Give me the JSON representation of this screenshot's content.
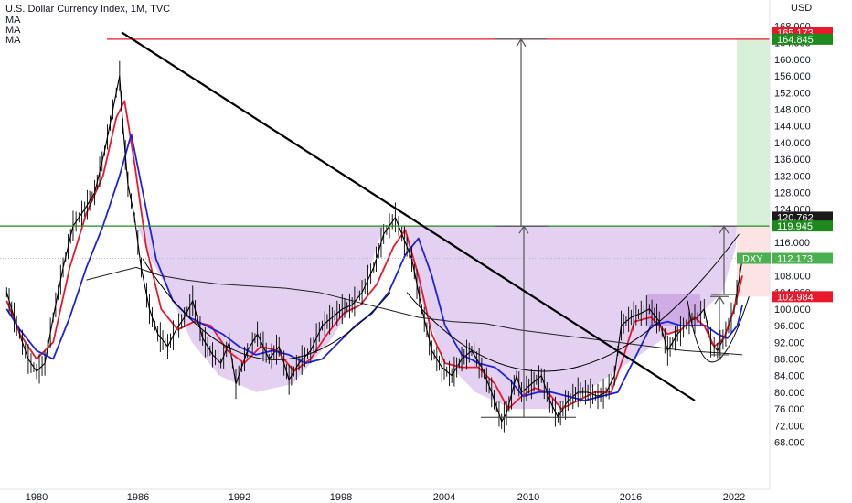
{
  "header": {
    "title": "U.S. Dollar Currency Index, 1M, TVC",
    "indicators": [
      "MA",
      "MA",
      "MA"
    ]
  },
  "colors": {
    "bar": "#000000",
    "ma_fast": "#e8192c",
    "ma_mid": "#1e22e0",
    "ma_slow": "#222222",
    "resistance_red": "#e8192c",
    "neckline_green": "#1e8a1e",
    "cup_fill": "#d6b8ea",
    "target_green": "#d8f0d8",
    "target_red": "#fde4e4"
  },
  "chart_data": {
    "type": "line",
    "title": "U.S. Dollar Currency Index, 1M, TVC",
    "currency": "USD",
    "y_ticks": [
      68,
      72,
      76,
      80,
      84,
      88,
      92,
      96,
      100,
      104,
      108,
      112,
      116,
      120,
      124,
      128,
      132,
      136,
      140,
      144,
      148,
      152,
      156,
      160,
      164,
      168
    ],
    "x_ticks": [
      "1980",
      "1986",
      "1992",
      "1998",
      "2004",
      "2010",
      "2016",
      "2022"
    ],
    "x_tick_years": [
      1980,
      1986,
      1992,
      1998,
      2004,
      2010,
      2016,
      2022
    ],
    "xlim": [
      1978.2,
      2023.6
    ],
    "ylim": [
      66,
      170
    ],
    "series": [
      {
        "key": "price",
        "x": [
          1978.2,
          1978.8,
          1979.5,
          1980.0,
          1980.5,
          1981.0,
          1981.6,
          1982.2,
          1982.9,
          1983.5,
          1984.1,
          1984.6,
          1985.0,
          1985.2,
          1985.5,
          1985.9,
          1986.3,
          1986.8,
          1987.3,
          1987.9,
          1988.4,
          1988.9,
          1989.4,
          1990.0,
          1990.6,
          1991.1,
          1991.6,
          1992.0,
          1992.7,
          1993.3,
          1994.0,
          1994.6,
          1995.2,
          1995.8,
          1996.5,
          1997.2,
          1997.8,
          1998.4,
          1999.0,
          1999.6,
          2000.3,
          2000.9,
          2001.6,
          2002.0,
          2002.6,
          2003.2,
          2003.8,
          2004.4,
          2005.0,
          2005.6,
          2006.2,
          2006.8,
          2007.4,
          2008.0,
          2008.3,
          2008.9,
          2009.2,
          2009.8,
          2010.4,
          2010.9,
          2011.4,
          2012.0,
          2012.6,
          2013.2,
          2013.8,
          2014.3,
          2014.8,
          2015.2,
          2015.8,
          2016.4,
          2016.9,
          2017.5,
          2018.0,
          2018.6,
          2019.3,
          2019.8,
          2020.2,
          2020.6,
          2021.0,
          2021.5,
          2022.0,
          2022.5
        ],
        "y": [
          104,
          96,
          88,
          85,
          87,
          98,
          110,
          120,
          124,
          128,
          138,
          148,
          156,
          144,
          130,
          122,
          110,
          100,
          94,
          91,
          95,
          98,
          102,
          93,
          89,
          87,
          92,
          82,
          90,
          94,
          88,
          91,
          83,
          87,
          90,
          96,
          98,
          100,
          101,
          104,
          110,
          118,
          122,
          118,
          112,
          100,
          90,
          86,
          84,
          88,
          90,
          86,
          80,
          73,
          75,
          84,
          80,
          82,
          84,
          78,
          74,
          78,
          80,
          80,
          79,
          80,
          84,
          96,
          98,
          99,
          100,
          97,
          90,
          94,
          97,
          98,
          100,
          92,
          90,
          94,
          100,
          112
        ]
      },
      {
        "key": "ma_fast",
        "x": [
          1978.2,
          1979.0,
          1980.0,
          1981.0,
          1982.0,
          1983.0,
          1984.0,
          1984.8,
          1985.3,
          1985.9,
          1986.6,
          1987.5,
          1988.5,
          1989.5,
          1990.5,
          1991.5,
          1992.5,
          1993.5,
          1994.5,
          1995.5,
          1996.5,
          1997.5,
          1998.5,
          1999.5,
          2000.5,
          2001.5,
          2002.2,
          2003.0,
          2003.8,
          2004.6,
          2005.6,
          2006.6,
          2007.6,
          2008.4,
          2009.2,
          2010.0,
          2010.8,
          2011.6,
          2012.6,
          2013.6,
          2014.6,
          2015.3,
          2016.0,
          2017.0,
          2018.0,
          2018.8,
          2019.6,
          2020.2,
          2020.8,
          2021.4,
          2022.0,
          2022.5
        ],
        "y": [
          102,
          94,
          88,
          92,
          110,
          123,
          132,
          146,
          150,
          135,
          115,
          100,
          95,
          97,
          96,
          90,
          87,
          91,
          90,
          85,
          88,
          94,
          99,
          101,
          106,
          115,
          119,
          108,
          94,
          87,
          86,
          86,
          82,
          76,
          79,
          81,
          80,
          76,
          78,
          80,
          80,
          88,
          97,
          98,
          94,
          95,
          98,
          96,
          91,
          93,
          100,
          108
        ]
      },
      {
        "key": "ma_mid",
        "x": [
          1978.2,
          1979.0,
          1980.0,
          1981.0,
          1982.0,
          1983.0,
          1984.0,
          1985.0,
          1985.7,
          1986.4,
          1987.2,
          1988.2,
          1989.2,
          1990.2,
          1991.2,
          1992.2,
          1993.2,
          1994.2,
          1995.2,
          1996.2,
          1997.2,
          1998.2,
          1999.2,
          2000.2,
          2001.2,
          2002.2,
          2003.0,
          2003.8,
          2004.6,
          2005.6,
          2006.6,
          2007.6,
          2008.5,
          2009.3,
          2010.2,
          2011.0,
          2012.0,
          2013.0,
          2014.0,
          2015.0,
          2016.0,
          2017.0,
          2018.0,
          2018.8,
          2019.6,
          2020.3,
          2021.0,
          2021.6,
          2022.2,
          2022.5
        ],
        "y": [
          100,
          95,
          90,
          88,
          98,
          110,
          120,
          132,
          142,
          128,
          112,
          102,
          98,
          96,
          94,
          91,
          89,
          90,
          89,
          87,
          88,
          92,
          96,
          99,
          104,
          113,
          117,
          108,
          96,
          89,
          87,
          86,
          83,
          79,
          80,
          80,
          79,
          78,
          79,
          80,
          88,
          96,
          97,
          96,
          96,
          96,
          94,
          93,
          96,
          101
        ]
      },
      {
        "key": "ma_slow",
        "x": [
          1983.0,
          1984.0,
          1985.0,
          1986.0,
          1987.5,
          1989.0,
          1991.0,
          1993.0,
          1995.0,
          1997.0,
          1999.0,
          2001.0,
          2003.0,
          2005.0,
          2007.0,
          2009.0,
          2011.0,
          2013.0,
          2015.0,
          2017.0,
          2019.0,
          2021.0,
          2022.5
        ],
        "y": [
          107,
          108,
          109,
          110,
          108,
          107,
          106,
          105.5,
          105,
          104,
          102,
          100,
          98,
          97,
          96.5,
          95,
          94,
          93,
          92,
          91,
          90,
          89.5,
          89
        ]
      }
    ],
    "legend_labels": [
      "DXY"
    ],
    "price_labels": [
      {
        "text": "165.173",
        "color": "#e8192c",
        "value": 165.173
      },
      {
        "text": "164.845",
        "color": "#1e8a1e",
        "value": 164.845
      },
      {
        "text": "120.762",
        "color": "#1a1a1a",
        "value": 120.762
      },
      {
        "text": "119.945",
        "color": "#1e8a1e",
        "value": 119.945
      },
      {
        "text": "112.173",
        "color": "#4caf50",
        "value": 112.173
      },
      {
        "text": "102.984",
        "color": "#e8192c",
        "value": 102.984
      }
    ],
    "levels": {
      "resistance": 164.845,
      "neckline": 119.945,
      "current": 112.173,
      "cup_low": 74,
      "target_top": 164.845
    }
  }
}
